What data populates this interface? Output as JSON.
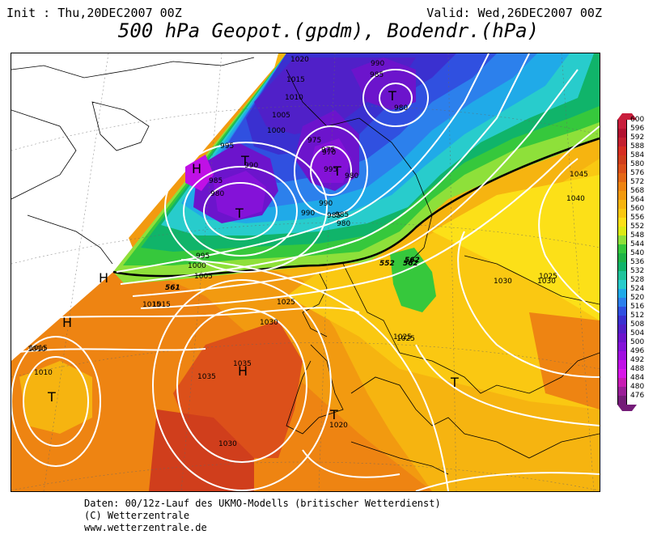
{
  "header": {
    "init": "Init : Thu,20DEC2007 00Z",
    "valid": "Valid: Wed,26DEC2007 00Z",
    "title": "500 hPa Geopot.(gpdm), Bodendr.(hPa)"
  },
  "footer": {
    "line1": "Daten: 00/12z-Lauf des UKMO-Modells (britischer Wetterdienst)",
    "line2": "(C) Wetterzentrale",
    "line3": "www.wetterzentrale.de"
  },
  "legend": {
    "values": [
      "600",
      "596",
      "592",
      "588",
      "584",
      "580",
      "576",
      "572",
      "568",
      "564",
      "560",
      "556",
      "552",
      "548",
      "544",
      "540",
      "536",
      "532",
      "528",
      "524",
      "520",
      "516",
      "512",
      "508",
      "504",
      "500",
      "496",
      "492",
      "488",
      "484",
      "480",
      "476"
    ],
    "colors": [
      "#c81e3c",
      "#b21230",
      "#c42030",
      "#d62e22",
      "#d03e1c",
      "#dc501a",
      "#e46816",
      "#ee8412",
      "#f29a10",
      "#f6b410",
      "#fac812",
      "#fce018",
      "#dcea14",
      "#8ee03a",
      "#36c83c",
      "#1eb446",
      "#10b46a",
      "#20c49c",
      "#28cccc",
      "#20aae8",
      "#2c80ec",
      "#3050e0",
      "#3a30d0",
      "#5020c8",
      "#6c14cc",
      "#8412d8",
      "#a010e0",
      "#c010e6",
      "#d818e8",
      "#c81cb4",
      "#9a1e98",
      "#741c78"
    ]
  },
  "map": {
    "pressure_labels": [
      "1020",
      "1015",
      "1010",
      "1005",
      "1000",
      "995",
      "990",
      "985",
      "980",
      "990",
      "985",
      "980",
      "975",
      "970",
      "995",
      "990",
      "985",
      "980",
      "975",
      "980",
      "985",
      "990",
      "1045",
      "1040",
      "1035",
      "1030",
      "1025",
      "1020",
      "1015",
      "1010",
      "1005",
      "1000",
      "995",
      "1015",
      "1025",
      "1030",
      "1035",
      "1030",
      "1020",
      "1025",
      "1030",
      "1025",
      "1020",
      "1015",
      "1010"
    ],
    "geopot_labels": [
      "552",
      "562",
      "562",
      "561"
    ],
    "highs": [
      "H",
      "H",
      "H",
      "H"
    ],
    "lows": [
      "T",
      "T",
      "T",
      "T",
      "T",
      "T",
      "T"
    ]
  }
}
